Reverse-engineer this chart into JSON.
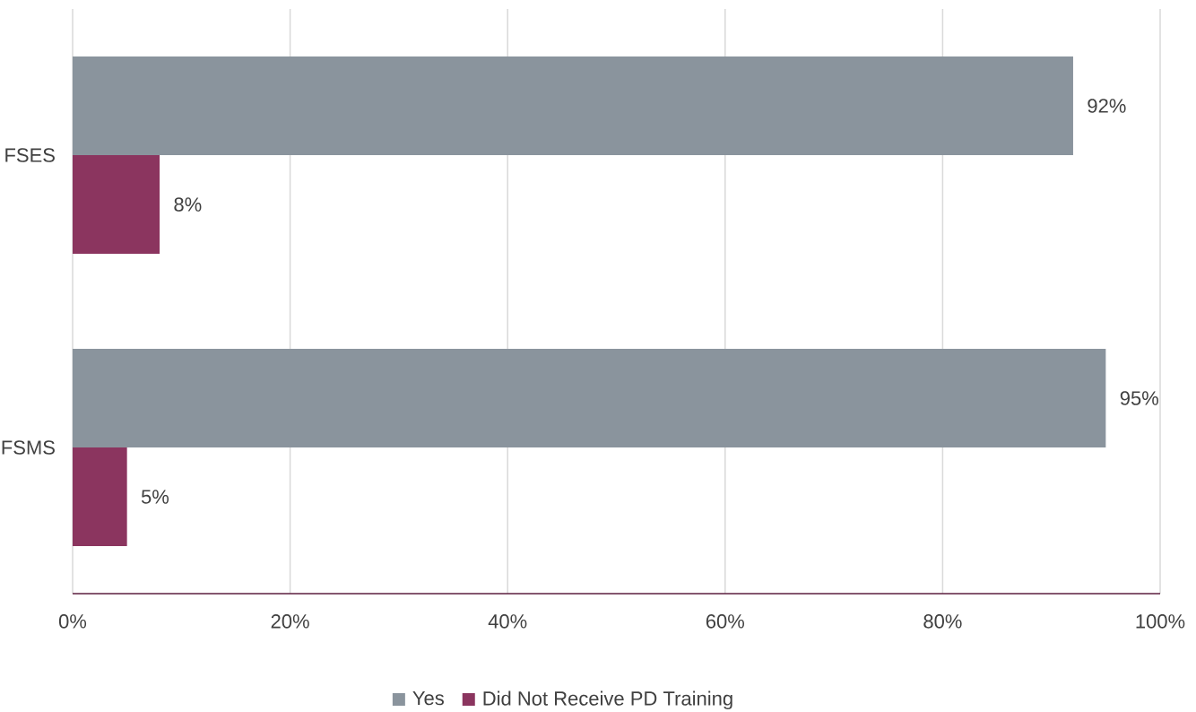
{
  "chart_data": {
    "type": "bar",
    "orientation": "horizontal",
    "categories": [
      "FSES",
      "FSMS"
    ],
    "series": [
      {
        "name": "Yes",
        "color": "#8a949d",
        "values": [
          92,
          95
        ],
        "value_labels": [
          "92%",
          "95%"
        ]
      },
      {
        "name": "Did Not Receive PD Training",
        "color": "#8b355f",
        "values": [
          8,
          5
        ],
        "value_labels": [
          "8%",
          "5%"
        ]
      }
    ],
    "xlim": [
      0,
      100
    ],
    "xticks": [
      {
        "value": 0,
        "label": "0%"
      },
      {
        "value": 20,
        "label": "20%"
      },
      {
        "value": 40,
        "label": "40%"
      },
      {
        "value": 60,
        "label": "60%"
      },
      {
        "value": 80,
        "label": "80%"
      },
      {
        "value": 100,
        "label": "100%"
      }
    ],
    "grid": "x",
    "legend": "bottom"
  }
}
